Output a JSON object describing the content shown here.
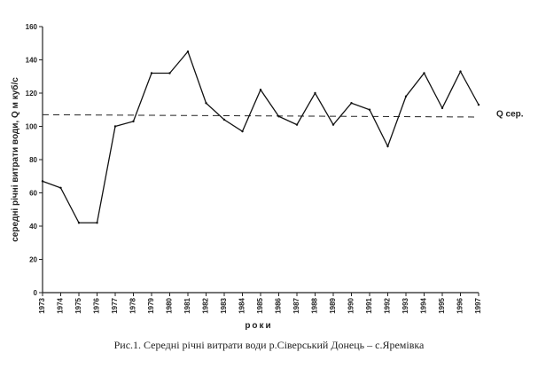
{
  "chart_data": {
    "type": "line",
    "title": "",
    "xlabel": "роки",
    "ylabel": "середні річні витрати води, Q м куб/с",
    "ylim": [
      0,
      160
    ],
    "yticks": [
      0,
      20,
      40,
      60,
      80,
      100,
      120,
      140,
      160
    ],
    "grid": false,
    "categories": [
      "1973",
      "1974",
      "1975",
      "1976",
      "1977",
      "1978",
      "1979",
      "1980",
      "1981",
      "1982",
      "1983",
      "1984",
      "1985",
      "1986",
      "1987",
      "1988",
      "1989",
      "1990",
      "1991",
      "1992",
      "1993",
      "1994",
      "1995",
      "1996",
      "1997"
    ],
    "series": [
      {
        "values": [
          67,
          63,
          42,
          42,
          100,
          103,
          132,
          132,
          145,
          114,
          104,
          97,
          122,
          106,
          101,
          120,
          101,
          114,
          110,
          88,
          118,
          132,
          111,
          133,
          113
        ]
      }
    ],
    "reference_line": {
      "label": "Q сер.",
      "value": 107
    }
  },
  "caption": "Рис.1. Середні річні витрати води  р.Сіверський Донець – с.Яремівка"
}
